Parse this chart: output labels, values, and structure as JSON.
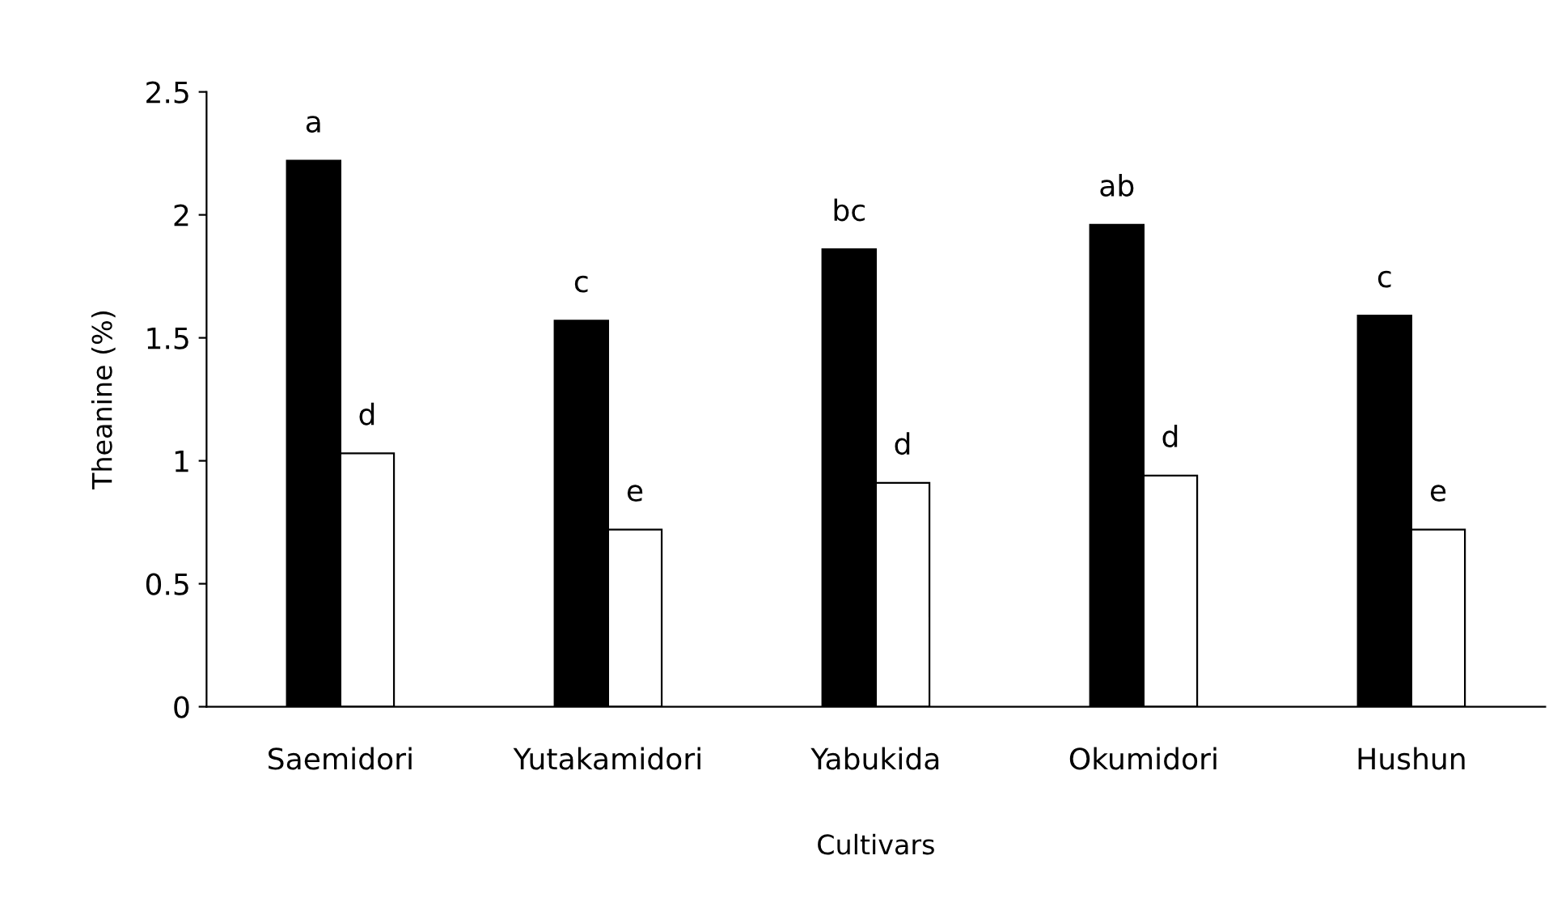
{
  "chart_data": {
    "type": "bar",
    "xlabel": "Cultivars",
    "ylabel": "Theanine (%)",
    "categories": [
      "Saemidori",
      "Yutakamidori",
      "Yabukida",
      "Okumidori",
      "Hushun"
    ],
    "series": [
      {
        "color": "#000000",
        "values": [
          2.22,
          1.57,
          1.86,
          1.96,
          1.59
        ],
        "value_labels": [
          "a",
          "c",
          "bc",
          "ab",
          "c"
        ]
      },
      {
        "color": "#ffffff",
        "values": [
          1.03,
          0.72,
          0.91,
          0.94,
          0.72
        ],
        "value_labels": [
          "d",
          "e",
          "d",
          "d",
          "e"
        ]
      }
    ],
    "ylim": [
      0,
      2.5
    ],
    "yticks": [
      0,
      0.5,
      1,
      1.5,
      2,
      2.5
    ],
    "grid": false,
    "legend": false
  }
}
